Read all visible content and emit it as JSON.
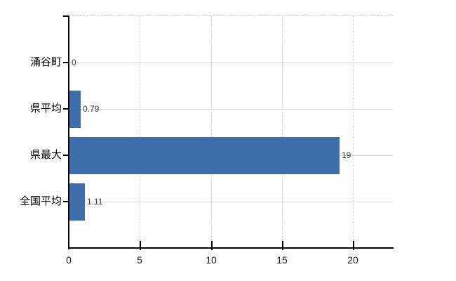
{
  "chart_data": {
    "type": "bar",
    "orientation": "horizontal",
    "title": "",
    "xlabel": "",
    "ylabel": "",
    "categories": [
      "涌谷町",
      "県平均",
      "県最大",
      "全国平均"
    ],
    "values": [
      0,
      0.79,
      19,
      1.11
    ],
    "value_labels": [
      "0",
      "0.79",
      "19",
      "1.11"
    ],
    "xticks": [
      0,
      5,
      10,
      15,
      20
    ],
    "xtick_labels": [
      "0",
      "5",
      "10",
      "15",
      "20"
    ],
    "xlim": [
      0,
      22.8
    ],
    "grid": true,
    "legend": false,
    "colors": {
      "bar": "#3e6fac",
      "axis": "#000000",
      "gridline_horizontal": "#d4d9d2",
      "gridline_vertical": "#d4d4d4",
      "top_border": "#c9c9c9",
      "category_label": "#000000",
      "value_label": "#3a3a3a",
      "tick_label": "#1a1a1a",
      "background": "#ffffff"
    }
  }
}
